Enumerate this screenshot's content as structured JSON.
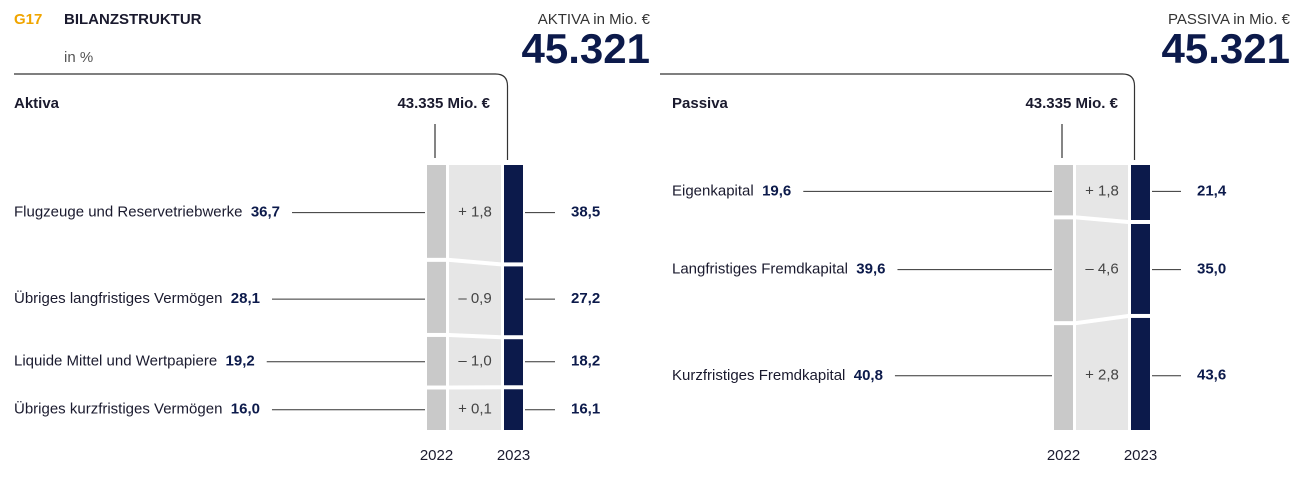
{
  "header": {
    "code": "G17",
    "title": "BILANZSTRUKTUR",
    "subtitle": "in %"
  },
  "chart_data": [
    {
      "type": "balance",
      "title": "Aktiva",
      "total_label": "43.335 Mio. €",
      "headline_label": "AKTIVA in Mio. €",
      "headline_value": "45.321",
      "categories": [
        "Flugzeuge und Reservetriebwerke",
        "Übriges langfristiges Vermögen",
        "Liquide Mittel und Wertpapiere",
        "Übriges kurzfristiges Vermögen"
      ],
      "series": [
        {
          "name": "2022",
          "color": "#c9c9c9",
          "values": [
            36.7,
            28.1,
            19.2,
            16.0
          ],
          "value_labels": [
            "36,7",
            "28,1",
            "19,2",
            "16,0"
          ]
        },
        {
          "name": "2023",
          "color": "#0c1a4b",
          "values": [
            38.5,
            27.2,
            18.2,
            16.1
          ],
          "value_labels": [
            "38,5",
            "27,2",
            "18,2",
            "16,1"
          ]
        }
      ],
      "changes": [
        1.8,
        -0.9,
        -1.0,
        0.1
      ],
      "change_labels": [
        "+ 1,8",
        "– 0,9",
        "– 1,0",
        "+ 0,1"
      ]
    },
    {
      "type": "balance",
      "title": "Passiva",
      "total_label": "43.335 Mio. €",
      "headline_label": "PASSIVA in Mio. €",
      "headline_value": "45.321",
      "categories": [
        "Eigenkapital",
        "Langfristiges Fremdkapital",
        "Kurzfristiges Fremdkapital"
      ],
      "series": [
        {
          "name": "2022",
          "color": "#c9c9c9",
          "values": [
            19.6,
            39.6,
            40.8
          ],
          "value_labels": [
            "19,6",
            "39,6",
            "40,8"
          ]
        },
        {
          "name": "2023",
          "color": "#0c1a4b",
          "values": [
            21.4,
            35.0,
            43.6
          ],
          "value_labels": [
            "21,4",
            "35,0",
            "43,6"
          ]
        }
      ],
      "changes": [
        1.8,
        -4.6,
        2.8
      ],
      "change_labels": [
        "+ 1,8",
        "– 4,6",
        "+ 2,8"
      ]
    }
  ]
}
